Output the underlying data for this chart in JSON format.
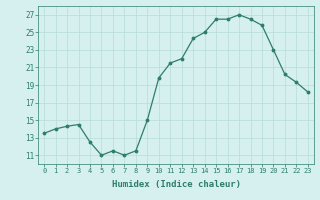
{
  "x": [
    0,
    1,
    2,
    3,
    4,
    5,
    6,
    7,
    8,
    9,
    10,
    11,
    12,
    13,
    14,
    15,
    16,
    17,
    18,
    19,
    20,
    21,
    22,
    23
  ],
  "y": [
    13.5,
    14.0,
    14.3,
    14.5,
    12.5,
    11.0,
    11.5,
    11.0,
    11.5,
    15.0,
    19.8,
    21.5,
    22.0,
    24.3,
    25.0,
    26.5,
    26.5,
    27.0,
    26.5,
    25.8,
    23.0,
    20.2,
    19.3,
    18.2
  ],
  "xlabel": "Humidex (Indice chaleur)",
  "ylim": [
    10,
    28
  ],
  "xlim": [
    -0.5,
    23.5
  ],
  "yticks": [
    11,
    13,
    15,
    17,
    19,
    21,
    23,
    25,
    27
  ],
  "xtick_labels": [
    "0",
    "1",
    "2",
    "3",
    "4",
    "5",
    "6",
    "7",
    "8",
    "9",
    "10",
    "11",
    "12",
    "13",
    "14",
    "15",
    "16",
    "17",
    "18",
    "19",
    "20",
    "21",
    "22",
    "23"
  ],
  "line_color": "#2e7d6e",
  "marker_color": "#2e7d6e",
  "bg_color": "#d5f0ee",
  "grid_color": "#b8dcd9",
  "label_color": "#2e7d6e",
  "tick_color": "#2e7d6e",
  "spine_color": "#2e7d6e"
}
